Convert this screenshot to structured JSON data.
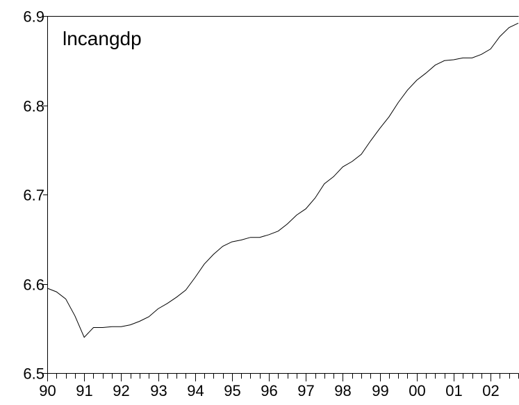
{
  "chart_data": {
    "type": "line",
    "categories": [
      "90",
      null,
      null,
      null,
      "91",
      null,
      null,
      null,
      "92",
      null,
      null,
      null,
      "93",
      null,
      null,
      null,
      "94",
      null,
      null,
      null,
      "95",
      null,
      null,
      null,
      "96",
      null,
      null,
      null,
      "97",
      null,
      null,
      null,
      "98",
      null,
      null,
      null,
      "99",
      null,
      null,
      null,
      "00",
      null,
      null,
      null,
      "01",
      null,
      null,
      null,
      "02",
      null,
      null,
      null
    ],
    "series": [
      {
        "name": "lncangdp",
        "color": "#000000",
        "values": [
          6.595,
          6.591,
          6.583,
          6.564,
          6.54,
          6.551,
          6.551,
          6.552,
          6.552,
          6.554,
          6.558,
          6.563,
          6.572,
          6.578,
          6.585,
          6.593,
          6.607,
          6.622,
          6.633,
          6.642,
          6.647,
          6.649,
          6.652,
          6.652,
          6.655,
          6.659,
          6.667,
          6.677,
          6.684,
          6.696,
          6.712,
          6.72,
          6.731,
          6.737,
          6.745,
          6.76,
          6.774,
          6.787,
          6.803,
          6.817,
          6.828,
          6.836,
          6.845,
          6.85,
          6.851,
          6.853,
          6.853,
          6.857,
          6.863,
          6.877,
          6.887,
          6.892
        ]
      }
    ],
    "ylim": [
      6.5,
      6.9
    ],
    "yticks": [
      6.5,
      6.6,
      6.7,
      6.8,
      6.9
    ]
  }
}
